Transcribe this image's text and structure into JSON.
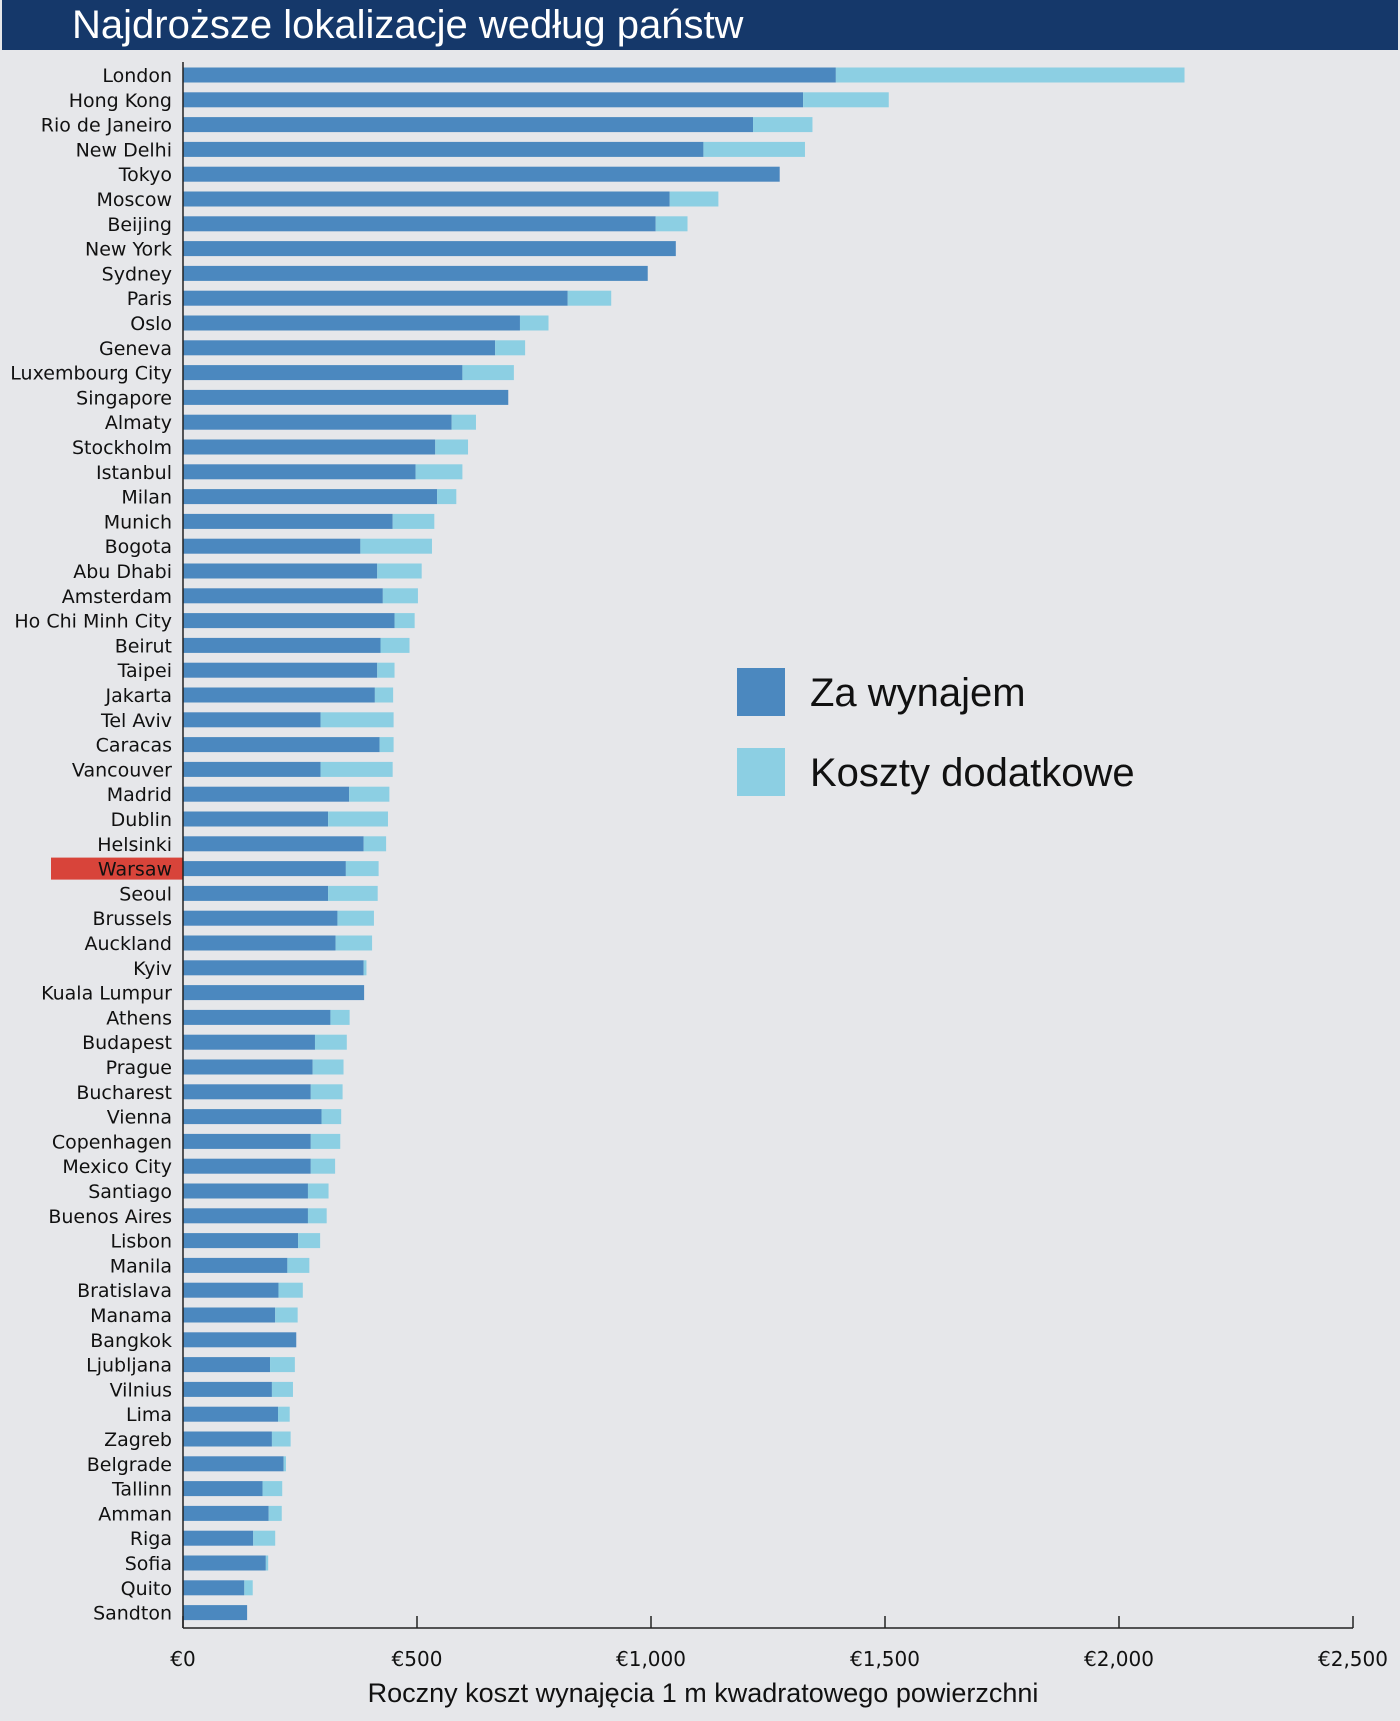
{
  "title": "Najdroższe lokalizacje według państw",
  "chart_data": {
    "type": "bar",
    "orientation": "horizontal",
    "stacked": true,
    "xlabel": "Roczny koszt wynajęcia 1 m kwadratowego powierzchni",
    "xlim": [
      0,
      2500
    ],
    "xticks": [
      0,
      500,
      1000,
      1500,
      2000,
      2500
    ],
    "xtick_labels": [
      "€0",
      "€500",
      "€1,000",
      "€1,500",
      "€2,000",
      "€2,500"
    ],
    "highlight_category": "Warsaw",
    "categories": [
      "London",
      "Hong Kong",
      "Rio de Janeiro",
      "New Delhi",
      "Tokyo",
      "Moscow",
      "Beijing",
      "New York",
      "Sydney",
      "Paris",
      "Oslo",
      "Geneva",
      "Luxembourg City",
      "Singapore",
      "Almaty",
      "Stockholm",
      "Istanbul",
      "Milan",
      "Munich",
      "Bogota",
      "Abu Dhabi",
      "Amsterdam",
      "Ho Chi Minh City",
      "Beirut",
      "Taipei",
      "Jakarta",
      "Tel Aviv",
      "Caracas",
      "Vancouver",
      "Madrid",
      "Dublin",
      "Helsinki",
      "Warsaw",
      "Seoul",
      "Brussels",
      "Auckland",
      "Kyiv",
      "Kuala Lumpur",
      "Athens",
      "Budapest",
      "Prague",
      "Bucharest",
      "Vienna",
      "Copenhagen",
      "Mexico City",
      "Santiago",
      "Buenos Aires",
      "Lisbon",
      "Manila",
      "Bratislava",
      "Manama",
      "Bangkok",
      "Ljubljana",
      "Vilnius",
      "Lima",
      "Zagreb",
      "Belgrade",
      "Tallinn",
      "Amman",
      "Riga",
      "Sofia",
      "Quito",
      "Sandton"
    ],
    "series": [
      {
        "name": "Za wynajem",
        "color": "#4b88bf",
        "values": [
          1395,
          1325,
          1218,
          1112,
          1275,
          1040,
          1010,
          1053,
          993,
          822,
          720,
          667,
          597,
          695,
          574,
          539,
          497,
          543,
          448,
          379,
          415,
          427,
          452,
          422,
          415,
          410,
          294,
          420,
          294,
          355,
          310,
          386,
          348,
          310,
          330,
          326,
          386,
          387,
          315,
          282,
          277,
          273,
          296,
          273,
          273,
          267,
          267,
          246,
          223,
          204,
          197,
          242,
          186,
          190,
          203,
          190,
          215,
          170,
          183,
          150,
          177,
          131,
          137
        ]
      },
      {
        "name": "Koszty dodatkowe",
        "color": "#8ccfe3",
        "values": [
          745,
          183,
          127,
          217,
          0,
          104,
          68,
          0,
          0,
          93,
          61,
          64,
          110,
          0,
          52,
          70,
          100,
          41,
          89,
          153,
          95,
          75,
          43,
          62,
          37,
          39,
          156,
          30,
          154,
          86,
          128,
          48,
          70,
          106,
          78,
          78,
          6,
          0,
          41,
          68,
          66,
          68,
          42,
          63,
          52,
          44,
          40,
          47,
          47,
          52,
          48,
          0,
          53,
          45,
          25,
          40,
          5,
          42,
          28,
          47,
          5,
          18,
          0
        ]
      }
    ],
    "legend": [
      "Za wynajem",
      "Koszty dodatkowe"
    ],
    "legend_position": "right-middle",
    "grid": false
  }
}
